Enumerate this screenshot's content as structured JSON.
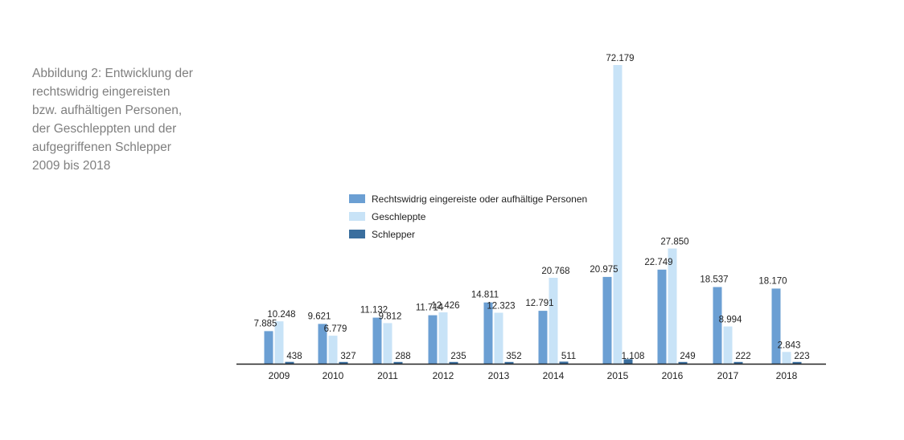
{
  "caption": {
    "lines": [
      "Abbildung 2: Entwicklung der",
      "rechtswidrig eingereisten",
      "bzw. aufhältigen Personen,",
      "der Geschleppten und der",
      "aufgegriffenen Schlepper",
      "2009 bis 2018"
    ]
  },
  "chart_data": {
    "type": "bar",
    "title": "",
    "xlabel": "",
    "ylabel": "",
    "ylim": [
      0,
      75000
    ],
    "grid": false,
    "legend": "center",
    "categories": [
      "2009",
      "2010",
      "2011",
      "2012",
      "2013",
      "2014",
      "2015",
      "2016",
      "2017",
      "2018"
    ],
    "series": [
      {
        "name": "Rechtswidrig eingereiste oder aufhältige Personen",
        "color": "#6b9fd3",
        "values": [
          7885,
          9621,
          11132,
          11714,
          14811,
          12791,
          20975,
          22749,
          18537,
          18170
        ],
        "labels": [
          "7.885",
          "9.621",
          "11.132",
          "11.714",
          "14.811",
          "12.791",
          "20.975",
          "22.749",
          "18.537",
          "18.170"
        ]
      },
      {
        "name": "Geschleppte",
        "color": "#c8e3f7",
        "values": [
          10248,
          6779,
          9812,
          12426,
          12323,
          20768,
          72179,
          27850,
          8994,
          2843
        ],
        "labels": [
          "10.248",
          "6.779",
          "9.812",
          "12.426",
          "12.323",
          "20.768",
          "72.179",
          "27.850",
          "8.994",
          "2.843"
        ]
      },
      {
        "name": "Schlepper",
        "color": "#3a6e9e",
        "values": [
          438,
          327,
          288,
          235,
          352,
          511,
          1108,
          249,
          222,
          223
        ],
        "labels": [
          "438",
          "327",
          "288",
          "235",
          "352",
          "511",
          "1.108",
          "249",
          "222",
          "223"
        ]
      }
    ]
  }
}
